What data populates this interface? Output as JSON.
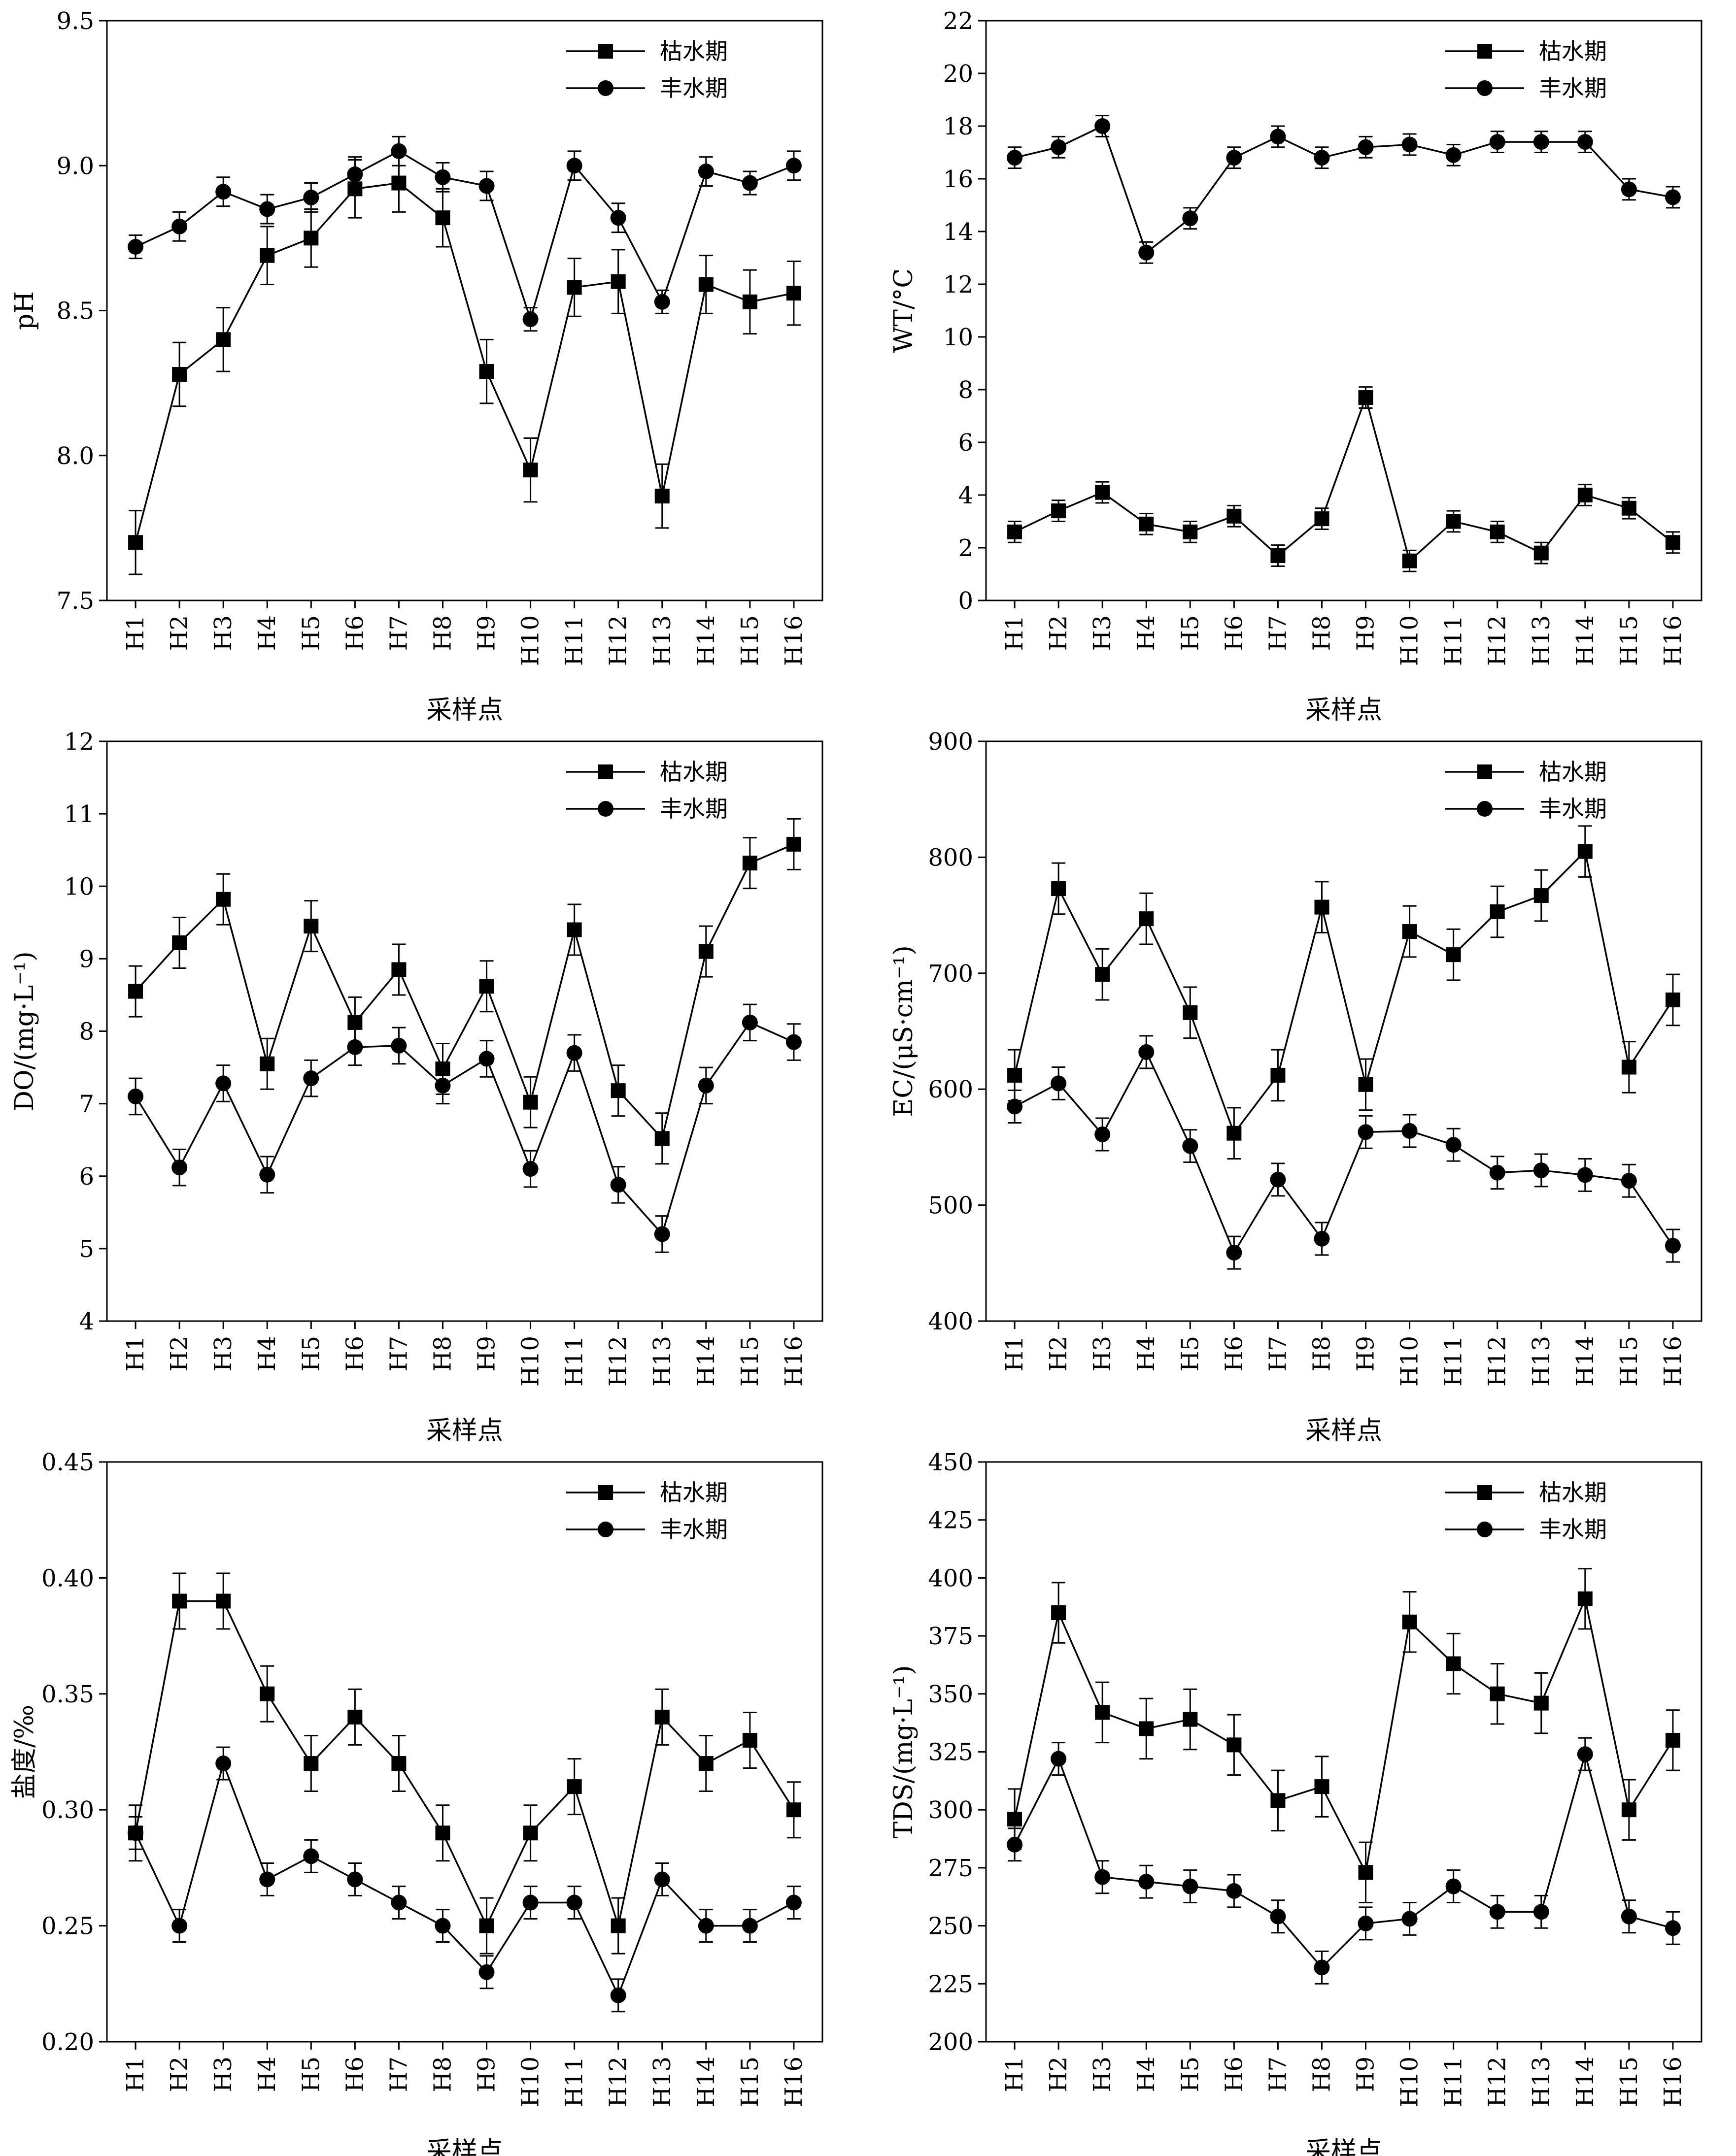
{
  "chart_data": [
    {
      "type": "line",
      "ylabel": "pH",
      "xlabel": "采样点",
      "ylim": [
        7.5,
        9.5
      ],
      "yticks": [
        "7.5",
        "8.0",
        "8.5",
        "9.0",
        "9.5"
      ],
      "categories": [
        "H1",
        "H2",
        "H3",
        "H4",
        "H5",
        "H6",
        "H7",
        "H8",
        "H9",
        "H10",
        "H11",
        "H12",
        "H13",
        "H14",
        "H15",
        "H16"
      ],
      "legend_position": "top-right",
      "series": [
        {
          "name": "枯水期",
          "marker": "square",
          "values": [
            7.7,
            8.28,
            8.4,
            8.69,
            8.75,
            8.92,
            8.94,
            8.82,
            8.29,
            7.95,
            8.58,
            8.6,
            7.86,
            8.59,
            8.53,
            8.56
          ],
          "errors": [
            0.11,
            0.11,
            0.11,
            0.1,
            0.1,
            0.1,
            0.1,
            0.1,
            0.11,
            0.11,
            0.1,
            0.11,
            0.11,
            0.1,
            0.11,
            0.11
          ]
        },
        {
          "name": "丰水期",
          "marker": "circle",
          "values": [
            8.72,
            8.79,
            8.91,
            8.85,
            8.89,
            8.97,
            9.05,
            8.96,
            8.93,
            8.47,
            9.0,
            8.82,
            8.53,
            8.98,
            8.94,
            9.0
          ],
          "errors": [
            0.04,
            0.05,
            0.05,
            0.05,
            0.05,
            0.06,
            0.05,
            0.05,
            0.05,
            0.04,
            0.05,
            0.05,
            0.04,
            0.05,
            0.04,
            0.05
          ]
        }
      ]
    },
    {
      "type": "line",
      "ylabel": "WT/°C",
      "xlabel": "采样点",
      "ylim": [
        0,
        22
      ],
      "yticks": [
        "0",
        "2",
        "4",
        "6",
        "8",
        "10",
        "12",
        "14",
        "16",
        "18",
        "20",
        "22"
      ],
      "categories": [
        "H1",
        "H2",
        "H3",
        "H4",
        "H5",
        "H6",
        "H7",
        "H8",
        "H9",
        "H10",
        "H11",
        "H12",
        "H13",
        "H14",
        "H15",
        "H16"
      ],
      "legend_position": "top-right",
      "series": [
        {
          "name": "枯水期",
          "marker": "square",
          "values": [
            2.6,
            3.4,
            4.1,
            2.9,
            2.6,
            3.2,
            1.7,
            3.1,
            7.7,
            1.5,
            3.0,
            2.6,
            1.8,
            4.0,
            3.5,
            2.2
          ],
          "errors": [
            0.4,
            0.4,
            0.4,
            0.4,
            0.4,
            0.4,
            0.4,
            0.4,
            0.4,
            0.4,
            0.4,
            0.4,
            0.4,
            0.4,
            0.4,
            0.4
          ]
        },
        {
          "name": "丰水期",
          "marker": "circle",
          "values": [
            16.8,
            17.2,
            18.0,
            13.2,
            14.5,
            16.8,
            17.6,
            16.8,
            17.2,
            17.3,
            16.9,
            17.4,
            17.4,
            17.4,
            15.6,
            15.3
          ],
          "errors": [
            0.4,
            0.4,
            0.4,
            0.4,
            0.4,
            0.4,
            0.4,
            0.4,
            0.4,
            0.4,
            0.4,
            0.4,
            0.4,
            0.4,
            0.4,
            0.4
          ]
        }
      ]
    },
    {
      "type": "line",
      "ylabel": "DO/(mg·L⁻¹)",
      "xlabel": "采样点",
      "ylim": [
        4,
        12
      ],
      "yticks": [
        "4",
        "5",
        "6",
        "7",
        "8",
        "9",
        "10",
        "11",
        "12"
      ],
      "categories": [
        "H1",
        "H2",
        "H3",
        "H4",
        "H5",
        "H6",
        "H7",
        "H8",
        "H9",
        "H10",
        "H11",
        "H12",
        "H13",
        "H14",
        "H15",
        "H16"
      ],
      "legend_position": "top-right",
      "series": [
        {
          "name": "枯水期",
          "marker": "square",
          "values": [
            8.55,
            9.22,
            9.82,
            7.55,
            9.45,
            8.12,
            8.85,
            7.48,
            8.62,
            7.02,
            9.4,
            7.18,
            6.52,
            9.1,
            10.32,
            10.58
          ],
          "errors": [
            0.35,
            0.35,
            0.35,
            0.35,
            0.35,
            0.35,
            0.35,
            0.35,
            0.35,
            0.35,
            0.35,
            0.35,
            0.35,
            0.35,
            0.35,
            0.35
          ]
        },
        {
          "name": "丰水期",
          "marker": "circle",
          "values": [
            7.1,
            6.12,
            7.28,
            6.02,
            7.35,
            7.78,
            7.8,
            7.25,
            7.62,
            6.1,
            7.7,
            5.88,
            5.2,
            7.25,
            8.12,
            7.85
          ],
          "errors": [
            0.25,
            0.25,
            0.25,
            0.25,
            0.25,
            0.25,
            0.25,
            0.25,
            0.25,
            0.25,
            0.25,
            0.25,
            0.25,
            0.25,
            0.25,
            0.25
          ]
        }
      ]
    },
    {
      "type": "line",
      "ylabel": "EC/(μS·cm⁻¹)",
      "xlabel": "采样点",
      "ylim": [
        400,
        900
      ],
      "yticks": [
        "400",
        "500",
        "600",
        "700",
        "800",
        "900"
      ],
      "categories": [
        "H1",
        "H2",
        "H3",
        "H4",
        "H5",
        "H6",
        "H7",
        "H8",
        "H9",
        "H10",
        "H11",
        "H12",
        "H13",
        "H14",
        "H15",
        "H16"
      ],
      "legend_position": "top-right",
      "series": [
        {
          "name": "枯水期",
          "marker": "square",
          "values": [
            612,
            773,
            699,
            747,
            666,
            562,
            612,
            757,
            604,
            736,
            716,
            753,
            767,
            805,
            619,
            677
          ],
          "errors": [
            22,
            22,
            22,
            22,
            22,
            22,
            22,
            22,
            22,
            22,
            22,
            22,
            22,
            22,
            22,
            22
          ]
        },
        {
          "name": "丰水期",
          "marker": "circle",
          "values": [
            585,
            605,
            561,
            632,
            551,
            459,
            522,
            471,
            563,
            564,
            552,
            528,
            530,
            526,
            521,
            465
          ],
          "errors": [
            14,
            14,
            14,
            14,
            14,
            14,
            14,
            14,
            14,
            14,
            14,
            14,
            14,
            14,
            14,
            14
          ]
        }
      ]
    },
    {
      "type": "line",
      "ylabel": "盐度/‰",
      "xlabel": "采样点",
      "ylim": [
        0.2,
        0.45
      ],
      "yticks": [
        "0.20",
        "0.25",
        "0.30",
        "0.35",
        "0.40",
        "0.45"
      ],
      "categories": [
        "H1",
        "H2",
        "H3",
        "H4",
        "H5",
        "H6",
        "H7",
        "H8",
        "H9",
        "H10",
        "H11",
        "H12",
        "H13",
        "H14",
        "H15",
        "H16"
      ],
      "legend_position": "top-right",
      "series": [
        {
          "name": "枯水期",
          "marker": "square",
          "values": [
            0.29,
            0.39,
            0.39,
            0.35,
            0.32,
            0.34,
            0.32,
            0.29,
            0.25,
            0.29,
            0.31,
            0.25,
            0.34,
            0.32,
            0.33,
            0.3
          ],
          "errors": [
            0.012,
            0.012,
            0.012,
            0.012,
            0.012,
            0.012,
            0.012,
            0.012,
            0.012,
            0.012,
            0.012,
            0.012,
            0.012,
            0.012,
            0.012,
            0.012
          ]
        },
        {
          "name": "丰水期",
          "marker": "circle",
          "values": [
            0.29,
            0.25,
            0.32,
            0.27,
            0.28,
            0.27,
            0.26,
            0.25,
            0.23,
            0.26,
            0.26,
            0.22,
            0.27,
            0.25,
            0.25,
            0.26
          ],
          "errors": [
            0.007,
            0.007,
            0.007,
            0.007,
            0.007,
            0.007,
            0.007,
            0.007,
            0.007,
            0.007,
            0.007,
            0.007,
            0.007,
            0.007,
            0.007,
            0.007
          ]
        }
      ]
    },
    {
      "type": "line",
      "ylabel": "TDS/(mg·L⁻¹)",
      "xlabel": "采样点",
      "ylim": [
        200,
        450
      ],
      "yticks": [
        "200",
        "225",
        "250",
        "275",
        "300",
        "325",
        "350",
        "375",
        "400",
        "425",
        "450"
      ],
      "categories": [
        "H1",
        "H2",
        "H3",
        "H4",
        "H5",
        "H6",
        "H7",
        "H8",
        "H9",
        "H10",
        "H11",
        "H12",
        "H13",
        "H14",
        "H15",
        "H16"
      ],
      "legend_position": "top-right",
      "series": [
        {
          "name": "枯水期",
          "marker": "square",
          "values": [
            296,
            385,
            342,
            335,
            339,
            328,
            304,
            310,
            273,
            381,
            363,
            350,
            346,
            391,
            300,
            330
          ],
          "errors": [
            13,
            13,
            13,
            13,
            13,
            13,
            13,
            13,
            13,
            13,
            13,
            13,
            13,
            13,
            13,
            13
          ]
        },
        {
          "name": "丰水期",
          "marker": "circle",
          "values": [
            285,
            322,
            271,
            269,
            267,
            265,
            254,
            232,
            251,
            253,
            267,
            256,
            256,
            324,
            254,
            249
          ],
          "errors": [
            7,
            7,
            7,
            7,
            7,
            7,
            7,
            7,
            7,
            7,
            7,
            7,
            7,
            7,
            7,
            7
          ]
        }
      ]
    }
  ]
}
